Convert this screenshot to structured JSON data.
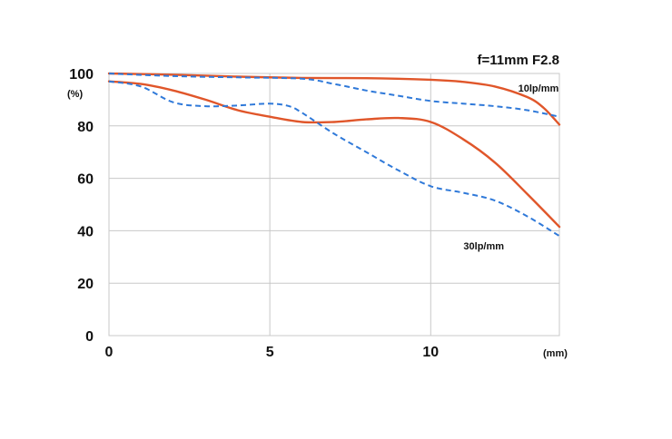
{
  "chart_data": {
    "type": "line",
    "title": "f=11mm F2.8",
    "ylabel": "(%)",
    "xlabel": "(mm)",
    "xlim": [
      0,
      14
    ],
    "ylim": [
      0,
      100
    ],
    "x_ticks": [
      "0",
      "5",
      "10"
    ],
    "y_ticks": [
      "0",
      "20",
      "40",
      "60",
      "80",
      "100"
    ],
    "x_tick_values": [
      0,
      5,
      10
    ],
    "y_tick_values": [
      0,
      20,
      40,
      60,
      80,
      100
    ],
    "grid": true,
    "annotations": [
      {
        "text": "10lp/mm",
        "x": 13.35,
        "y": 94.5
      },
      {
        "text": "30lp/mm",
        "x": 11.65,
        "y": 34.2
      }
    ],
    "series": [
      {
        "group": "10lp/mm",
        "style": "solid",
        "color": "#e0562a",
        "x": [
          0,
          2,
          4,
          6,
          8,
          10,
          11,
          12,
          13,
          13.5,
          14
        ],
        "y": [
          100,
          99.5,
          98.8,
          98.3,
          98.2,
          97.6,
          96.8,
          95,
          91,
          87,
          80.5
        ]
      },
      {
        "group": "10lp/mm",
        "style": "dashed",
        "color": "#2f79d9",
        "x": [
          0,
          2,
          4,
          6,
          7,
          8,
          9,
          10,
          11,
          12,
          13,
          14
        ],
        "y": [
          100,
          99,
          98.5,
          98,
          96,
          93.5,
          91.5,
          89.5,
          88.5,
          87.5,
          86,
          83.5
        ]
      },
      {
        "group": "30lp/mm",
        "style": "solid",
        "color": "#e0562a",
        "x": [
          0,
          1,
          2,
          3,
          4,
          5,
          6,
          7,
          8,
          9,
          10,
          11,
          12,
          13,
          14
        ],
        "y": [
          97,
          96,
          93.5,
          90,
          86,
          83.5,
          81.5,
          81.5,
          82.5,
          83,
          81.5,
          75,
          66,
          54,
          41.5
        ]
      },
      {
        "group": "30lp/mm",
        "style": "dashed",
        "color": "#2f79d9",
        "x": [
          0,
          1,
          2,
          3,
          4,
          5,
          5.6,
          6,
          7,
          8,
          9,
          10,
          11,
          12,
          13,
          14
        ],
        "y": [
          97,
          95,
          89,
          87.5,
          87.8,
          88.5,
          87.5,
          85,
          77,
          70,
          63,
          57,
          54.5,
          51.5,
          45.5,
          38
        ]
      }
    ]
  }
}
